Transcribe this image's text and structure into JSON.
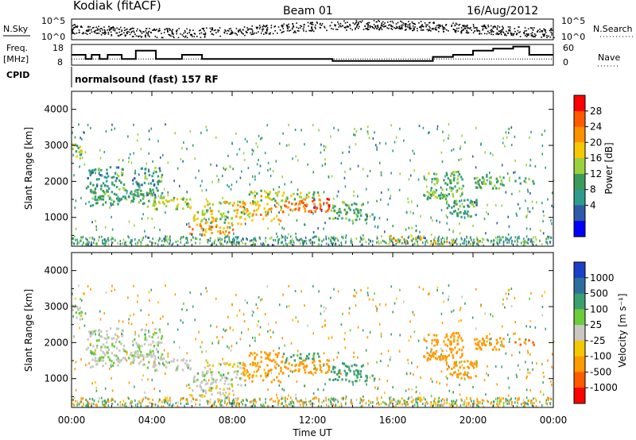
{
  "header": {
    "site": "Kodiak (fitACF)",
    "beam": "Beam 01",
    "date": "16/Aug/2012"
  },
  "summary": {
    "nsky_label": "N.Sky",
    "nsearch_label": "N.Search",
    "noise_ticks": [
      "10^5",
      "10^0"
    ],
    "freq_label_1": "Freq.",
    "freq_label_2": "[MHz]",
    "freq_ticks": [
      "18",
      "8"
    ],
    "nave_label": "Nave",
    "nave_ticks": [
      "60",
      "0"
    ],
    "cpid_label": "CPID",
    "cpid_text": "normalsound (fast) 157 RF"
  },
  "panels": {
    "power": {
      "ylabel": "Slant Range [km]",
      "cbar_label": "Power [dB]",
      "cbar_ticks": [
        "28",
        "24",
        "20",
        "16",
        "12",
        "8",
        "4"
      ],
      "cbar_colors": [
        "#ff0000",
        "#ff5a00",
        "#ff9000",
        "#f5c800",
        "#9ad23c",
        "#3c9a5a",
        "#2e9c8c",
        "#2e5aa8",
        "#0000ff"
      ]
    },
    "velocity": {
      "ylabel": "Slant Range [km]",
      "cbar_label": "Velocity [m s⁻¹]",
      "cbar_ticks": [
        "1000",
        "500",
        "100",
        "25",
        "-25",
        "-100",
        "-500",
        "-1000"
      ],
      "cbar_colors": [
        "#1a3fc8",
        "#2e6e9e",
        "#3aa070",
        "#6ccc3a",
        "#c8c8c0",
        "#f2c800",
        "#ff9a00",
        "#ff5a00",
        "#ff0000"
      ]
    }
  },
  "xaxis": {
    "label": "Time UT",
    "ticks": [
      "00:00",
      "04:00",
      "08:00",
      "12:00",
      "16:00",
      "20:00",
      "00:00"
    ]
  },
  "chart_data": {
    "type": "heatmap",
    "x_range_hours": [
      0,
      24
    ],
    "y_range_km": [
      200,
      4500
    ],
    "yticks_km": [
      1000,
      2000,
      3000,
      4000
    ],
    "freq_steps_mhz": [
      {
        "t0": 0.0,
        "t1": 0.7,
        "v": 13
      },
      {
        "t0": 0.7,
        "t1": 1.0,
        "v": 11
      },
      {
        "t0": 1.0,
        "t1": 1.4,
        "v": 13
      },
      {
        "t0": 1.4,
        "t1": 1.8,
        "v": 11
      },
      {
        "t0": 1.8,
        "t1": 2.5,
        "v": 13
      },
      {
        "t0": 2.5,
        "t1": 3.2,
        "v": 11
      },
      {
        "t0": 3.2,
        "t1": 4.2,
        "v": 15
      },
      {
        "t0": 4.2,
        "t1": 5.5,
        "v": 11
      },
      {
        "t0": 5.5,
        "t1": 6.5,
        "v": 13
      },
      {
        "t0": 6.5,
        "t1": 8.5,
        "v": 11
      },
      {
        "t0": 8.5,
        "t1": 10.5,
        "v": 11
      },
      {
        "t0": 10.5,
        "t1": 13.0,
        "v": 11
      },
      {
        "t0": 13.0,
        "t1": 18.0,
        "v": 10
      },
      {
        "t0": 18.0,
        "t1": 19.0,
        "v": 12
      },
      {
        "t0": 19.0,
        "t1": 20.0,
        "v": 13
      },
      {
        "t0": 20.0,
        "t1": 21.0,
        "v": 15
      },
      {
        "t0": 21.0,
        "t1": 22.0,
        "v": 16
      },
      {
        "t0": 22.0,
        "t1": 22.8,
        "v": 17
      },
      {
        "t0": 22.8,
        "t1": 24.0,
        "v": 13
      }
    ],
    "nave_level": 11,
    "echo_regions": [
      {
        "t0": 0.0,
        "t1": 0.5,
        "r0": 2600,
        "r1": 3100,
        "power": 14,
        "vel": 10
      },
      {
        "t0": 0.6,
        "t1": 2.6,
        "r0": 1800,
        "r1": 2400,
        "power": 9,
        "vel": 15
      },
      {
        "t0": 0.9,
        "t1": 4.0,
        "r0": 1300,
        "r1": 1800,
        "power": 11,
        "vel": 15
      },
      {
        "t0": 3.0,
        "t1": 4.5,
        "r0": 1600,
        "r1": 2400,
        "power": 9,
        "vel": 15
      },
      {
        "t0": 4.0,
        "t1": 6.0,
        "r0": 1200,
        "r1": 1600,
        "power": 15,
        "vel": 10
      },
      {
        "t0": 5.8,
        "t1": 8.0,
        "r0": 500,
        "r1": 800,
        "power": 22,
        "vel": -20
      },
      {
        "t0": 6.0,
        "t1": 8.5,
        "r0": 800,
        "r1": 1200,
        "power": 17,
        "vel": 10
      },
      {
        "t0": 6.5,
        "t1": 8.5,
        "r0": 1300,
        "r1": 1500,
        "power": 18,
        "vel": -30
      },
      {
        "t0": 8.5,
        "t1": 10.5,
        "r0": 900,
        "r1": 1400,
        "power": 20,
        "vel": -80
      },
      {
        "t0": 8.8,
        "t1": 10.5,
        "r0": 1400,
        "r1": 1750,
        "power": 16,
        "vel": -150
      },
      {
        "t0": 10.5,
        "t1": 12.8,
        "r0": 1150,
        "r1": 1550,
        "power": 26,
        "vel": -200
      },
      {
        "t0": 10.5,
        "t1": 12.5,
        "r0": 1500,
        "r1": 1700,
        "power": 15,
        "vel": 80
      },
      {
        "t0": 12.8,
        "t1": 14.5,
        "r0": 900,
        "r1": 1450,
        "power": 12,
        "vel": 120
      },
      {
        "t0": 14.5,
        "t1": 15.2,
        "r0": 900,
        "r1": 1100,
        "power": 9,
        "vel": 200
      },
      {
        "t0": 15.8,
        "t1": 17.5,
        "r0": 300,
        "r1": 500,
        "power": 21,
        "vel": -40
      },
      {
        "t0": 17.5,
        "t1": 20.5,
        "r0": 250,
        "r1": 350,
        "power": 18,
        "vel": -40
      },
      {
        "t0": 17.5,
        "t1": 19.5,
        "r0": 1500,
        "r1": 2300,
        "power": 12,
        "vel": -120
      },
      {
        "t0": 18.5,
        "t1": 20.2,
        "r0": 1000,
        "r1": 1500,
        "power": 10,
        "vel": -150
      },
      {
        "t0": 20.0,
        "t1": 21.5,
        "r0": 1800,
        "r1": 2200,
        "power": 12,
        "vel": -200
      },
      {
        "t0": 22.0,
        "t1": 23.0,
        "r0": 1900,
        "r1": 2100,
        "power": 10,
        "vel": -300
      }
    ]
  }
}
